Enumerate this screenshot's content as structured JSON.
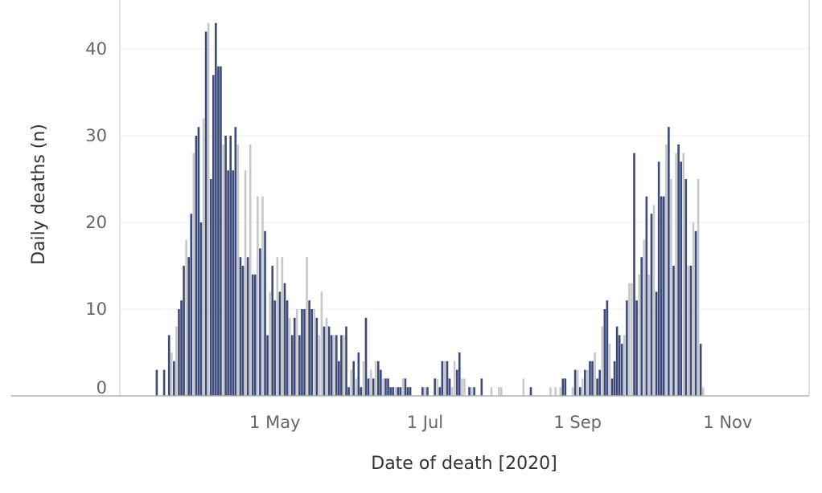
{
  "chart_data": {
    "type": "bar",
    "xlabel": "Date of death [2020]",
    "ylabel": "Daily deaths (n)",
    "y_ticks": [
      0,
      10,
      20,
      30,
      40
    ],
    "x_ticks": [
      "1 May",
      "1 Jul",
      "1 Sep",
      "1 Nov"
    ],
    "x_tick_dates": [
      "2020-05-01",
      "2020-07-01",
      "2020-09-01",
      "2020-11-01"
    ],
    "x_range": [
      "2020-02-28",
      "2020-12-09"
    ],
    "ylim": [
      0,
      46
    ],
    "grid": "horizontal",
    "legend": "none",
    "bars": [
      {
        "date": "2020-03-14",
        "value": 3,
        "color": "#3b4a7a"
      },
      {
        "date": "2020-03-17",
        "value": 3,
        "color": "#3b4a7a"
      },
      {
        "date": "2020-03-19",
        "value": 7,
        "color": "#3b4a7a"
      },
      {
        "date": "2020-03-20",
        "value": 5,
        "color": "#c8c8c8"
      },
      {
        "date": "2020-03-21",
        "value": 4,
        "color": "#3b4a7a"
      },
      {
        "date": "2020-03-22",
        "value": 8,
        "color": "#c8c8c8"
      },
      {
        "date": "2020-03-23",
        "value": 10,
        "color": "#3b4a7a"
      },
      {
        "date": "2020-03-24",
        "value": 11,
        "color": "#3b4a7a"
      },
      {
        "date": "2020-03-25",
        "value": 15,
        "color": "#3b4a7a"
      },
      {
        "date": "2020-03-26",
        "value": 18,
        "color": "#c8c8c8"
      },
      {
        "date": "2020-03-27",
        "value": 16,
        "color": "#3b4a7a"
      },
      {
        "date": "2020-03-28",
        "value": 21,
        "color": "#3b4a7a"
      },
      {
        "date": "2020-03-29",
        "value": 28,
        "color": "#c8c8c8"
      },
      {
        "date": "2020-03-30",
        "value": 30,
        "color": "#3b4a7a"
      },
      {
        "date": "2020-03-31",
        "value": 31,
        "color": "#3b4a7a"
      },
      {
        "date": "2020-04-01",
        "value": 20,
        "color": "#3b4a7a"
      },
      {
        "date": "2020-04-02",
        "value": 32,
        "color": "#c8c8c8"
      },
      {
        "date": "2020-04-03",
        "value": 42,
        "color": "#3b4a7a"
      },
      {
        "date": "2020-04-04",
        "value": 43,
        "color": "#c8c8c8"
      },
      {
        "date": "2020-04-05",
        "value": 25,
        "color": "#3b4a7a"
      },
      {
        "date": "2020-04-06",
        "value": 37,
        "color": "#3b4a7a"
      },
      {
        "date": "2020-04-07",
        "value": 43,
        "color": "#3b4a7a"
      },
      {
        "date": "2020-04-08",
        "value": 38,
        "color": "#3b4a7a"
      },
      {
        "date": "2020-04-09",
        "value": 38,
        "color": "#3b4a7a"
      },
      {
        "date": "2020-04-10",
        "value": 29,
        "color": "#c8c8c8"
      },
      {
        "date": "2020-04-11",
        "value": 30,
        "color": "#3b4a7a"
      },
      {
        "date": "2020-04-12",
        "value": 26,
        "color": "#3b4a7a"
      },
      {
        "date": "2020-04-13",
        "value": 30,
        "color": "#3b4a7a"
      },
      {
        "date": "2020-04-14",
        "value": 26,
        "color": "#3b4a7a"
      },
      {
        "date": "2020-04-15",
        "value": 31,
        "color": "#3b4a7a"
      },
      {
        "date": "2020-04-16",
        "value": 29,
        "color": "#c8c8c8"
      },
      {
        "date": "2020-04-17",
        "value": 16,
        "color": "#3b4a7a"
      },
      {
        "date": "2020-04-18",
        "value": 15,
        "color": "#3b4a7a"
      },
      {
        "date": "2020-04-19",
        "value": 26,
        "color": "#c8c8c8"
      },
      {
        "date": "2020-04-20",
        "value": 16,
        "color": "#3b4a7a"
      },
      {
        "date": "2020-04-21",
        "value": 29,
        "color": "#c8c8c8"
      },
      {
        "date": "2020-04-22",
        "value": 14,
        "color": "#3b4a7a"
      },
      {
        "date": "2020-04-23",
        "value": 14,
        "color": "#3b4a7a"
      },
      {
        "date": "2020-04-24",
        "value": 23,
        "color": "#c8c8c8"
      },
      {
        "date": "2020-04-25",
        "value": 17,
        "color": "#3b4a7a"
      },
      {
        "date": "2020-04-26",
        "value": 23,
        "color": "#c8c8c8"
      },
      {
        "date": "2020-04-27",
        "value": 19,
        "color": "#3b4a7a"
      },
      {
        "date": "2020-04-28",
        "value": 7,
        "color": "#3b4a7a"
      },
      {
        "date": "2020-04-29",
        "value": 12,
        "color": "#c8c8c8"
      },
      {
        "date": "2020-04-30",
        "value": 15,
        "color": "#3b4a7a"
      },
      {
        "date": "2020-05-01",
        "value": 11,
        "color": "#3b4a7a"
      },
      {
        "date": "2020-05-02",
        "value": 16,
        "color": "#c8c8c8"
      },
      {
        "date": "2020-05-03",
        "value": 12,
        "color": "#3b4a7a"
      },
      {
        "date": "2020-05-04",
        "value": 16,
        "color": "#c8c8c8"
      },
      {
        "date": "2020-05-05",
        "value": 13,
        "color": "#3b4a7a"
      },
      {
        "date": "2020-05-06",
        "value": 11,
        "color": "#3b4a7a"
      },
      {
        "date": "2020-05-07",
        "value": 9,
        "color": "#c8c8c8"
      },
      {
        "date": "2020-05-08",
        "value": 7,
        "color": "#3b4a7a"
      },
      {
        "date": "2020-05-09",
        "value": 9,
        "color": "#3b4a7a"
      },
      {
        "date": "2020-05-10",
        "value": 10,
        "color": "#c8c8c8"
      },
      {
        "date": "2020-05-11",
        "value": 7,
        "color": "#3b4a7a"
      },
      {
        "date": "2020-05-12",
        "value": 10,
        "color": "#3b4a7a"
      },
      {
        "date": "2020-05-13",
        "value": 10,
        "color": "#3b4a7a"
      },
      {
        "date": "2020-05-14",
        "value": 16,
        "color": "#c8c8c8"
      },
      {
        "date": "2020-05-15",
        "value": 11,
        "color": "#3b4a7a"
      },
      {
        "date": "2020-05-16",
        "value": 10,
        "color": "#3b4a7a"
      },
      {
        "date": "2020-05-17",
        "value": 10,
        "color": "#c8c8c8"
      },
      {
        "date": "2020-05-18",
        "value": 9,
        "color": "#3b4a7a"
      },
      {
        "date": "2020-05-19",
        "value": 7,
        "color": "#c8c8c8"
      },
      {
        "date": "2020-05-20",
        "value": 12,
        "color": "#c8c8c8"
      },
      {
        "date": "2020-05-21",
        "value": 8,
        "color": "#3b4a7a"
      },
      {
        "date": "2020-05-22",
        "value": 9,
        "color": "#c8c8c8"
      },
      {
        "date": "2020-05-23",
        "value": 8,
        "color": "#3b4a7a"
      },
      {
        "date": "2020-05-24",
        "value": 7,
        "color": "#3b4a7a"
      },
      {
        "date": "2020-05-25",
        "value": 7,
        "color": "#c8c8c8"
      },
      {
        "date": "2020-05-26",
        "value": 7,
        "color": "#3b4a7a"
      },
      {
        "date": "2020-05-27",
        "value": 4,
        "color": "#3b4a7a"
      },
      {
        "date": "2020-05-28",
        "value": 7,
        "color": "#3b4a7a"
      },
      {
        "date": "2020-05-29",
        "value": 7,
        "color": "#c8c8c8"
      },
      {
        "date": "2020-05-30",
        "value": 8,
        "color": "#3b4a7a"
      },
      {
        "date": "2020-05-31",
        "value": 1,
        "color": "#3b4a7a"
      },
      {
        "date": "2020-06-01",
        "value": 3,
        "color": "#c8c8c8"
      },
      {
        "date": "2020-06-02",
        "value": 4,
        "color": "#3b4a7a"
      },
      {
        "date": "2020-06-03",
        "value": 2,
        "color": "#c8c8c8"
      },
      {
        "date": "2020-06-04",
        "value": 5,
        "color": "#3b4a7a"
      },
      {
        "date": "2020-06-05",
        "value": 1,
        "color": "#3b4a7a"
      },
      {
        "date": "2020-06-06",
        "value": 4,
        "color": "#c8c8c8"
      },
      {
        "date": "2020-06-07",
        "value": 9,
        "color": "#3b4a7a"
      },
      {
        "date": "2020-06-08",
        "value": 2,
        "color": "#3b4a7a"
      },
      {
        "date": "2020-06-09",
        "value": 3,
        "color": "#c8c8c8"
      },
      {
        "date": "2020-06-10",
        "value": 2,
        "color": "#3b4a7a"
      },
      {
        "date": "2020-06-11",
        "value": 4,
        "color": "#c8c8c8"
      },
      {
        "date": "2020-06-12",
        "value": 4,
        "color": "#3b4a7a"
      },
      {
        "date": "2020-06-13",
        "value": 3,
        "color": "#3b4a7a"
      },
      {
        "date": "2020-06-14",
        "value": 2,
        "color": "#c8c8c8"
      },
      {
        "date": "2020-06-15",
        "value": 2,
        "color": "#3b4a7a"
      },
      {
        "date": "2020-06-16",
        "value": 2,
        "color": "#3b4a7a"
      },
      {
        "date": "2020-06-17",
        "value": 1,
        "color": "#3b4a7a"
      },
      {
        "date": "2020-06-18",
        "value": 1,
        "color": "#3b4a7a"
      },
      {
        "date": "2020-06-19",
        "value": 1,
        "color": "#c8c8c8"
      },
      {
        "date": "2020-06-20",
        "value": 1,
        "color": "#3b4a7a"
      },
      {
        "date": "2020-06-21",
        "value": 1,
        "color": "#3b4a7a"
      },
      {
        "date": "2020-06-22",
        "value": 2,
        "color": "#c8c8c8"
      },
      {
        "date": "2020-06-23",
        "value": 2,
        "color": "#3b4a7a"
      },
      {
        "date": "2020-06-24",
        "value": 1,
        "color": "#3b4a7a"
      },
      {
        "date": "2020-06-25",
        "value": 1,
        "color": "#3b4a7a"
      },
      {
        "date": "2020-06-30",
        "value": 1,
        "color": "#3b4a7a"
      },
      {
        "date": "2020-07-01",
        "value": 1,
        "color": "#c8c8c8"
      },
      {
        "date": "2020-07-02",
        "value": 1,
        "color": "#3b4a7a"
      },
      {
        "date": "2020-07-05",
        "value": 2,
        "color": "#3b4a7a"
      },
      {
        "date": "2020-07-06",
        "value": 2,
        "color": "#c8c8c8"
      },
      {
        "date": "2020-07-07",
        "value": 1,
        "color": "#3b4a7a"
      },
      {
        "date": "2020-07-08",
        "value": 4,
        "color": "#3b4a7a"
      },
      {
        "date": "2020-07-09",
        "value": 4,
        "color": "#c8c8c8"
      },
      {
        "date": "2020-07-10",
        "value": 4,
        "color": "#3b4a7a"
      },
      {
        "date": "2020-07-11",
        "value": 2,
        "color": "#3b4a7a"
      },
      {
        "date": "2020-07-12",
        "value": 1,
        "color": "#c8c8c8"
      },
      {
        "date": "2020-07-13",
        "value": 4,
        "color": "#c8c8c8"
      },
      {
        "date": "2020-07-14",
        "value": 3,
        "color": "#3b4a7a"
      },
      {
        "date": "2020-07-15",
        "value": 5,
        "color": "#3b4a7a"
      },
      {
        "date": "2020-07-16",
        "value": 2,
        "color": "#c8c8c8"
      },
      {
        "date": "2020-07-17",
        "value": 2,
        "color": "#c8c8c8"
      },
      {
        "date": "2020-07-19",
        "value": 1,
        "color": "#3b4a7a"
      },
      {
        "date": "2020-07-20",
        "value": 1,
        "color": "#c8c8c8"
      },
      {
        "date": "2020-07-21",
        "value": 1,
        "color": "#3b4a7a"
      },
      {
        "date": "2020-07-24",
        "value": 2,
        "color": "#3b4a7a"
      },
      {
        "date": "2020-07-28",
        "value": 1,
        "color": "#c8c8c8"
      },
      {
        "date": "2020-07-31",
        "value": 1,
        "color": "#c8c8c8"
      },
      {
        "date": "2020-08-01",
        "value": 1,
        "color": "#c8c8c8"
      },
      {
        "date": "2020-08-10",
        "value": 2,
        "color": "#c8c8c8"
      },
      {
        "date": "2020-08-13",
        "value": 1,
        "color": "#3b4a7a"
      },
      {
        "date": "2020-08-21",
        "value": 1,
        "color": "#c8c8c8"
      },
      {
        "date": "2020-08-23",
        "value": 1,
        "color": "#c8c8c8"
      },
      {
        "date": "2020-08-25",
        "value": 1,
        "color": "#c8c8c8"
      },
      {
        "date": "2020-08-26",
        "value": 2,
        "color": "#3b4a7a"
      },
      {
        "date": "2020-08-27",
        "value": 2,
        "color": "#3b4a7a"
      },
      {
        "date": "2020-08-30",
        "value": 1,
        "color": "#c8c8c8"
      },
      {
        "date": "2020-08-31",
        "value": 3,
        "color": "#3b4a7a"
      },
      {
        "date": "2020-09-01",
        "value": 3,
        "color": "#c8c8c8"
      },
      {
        "date": "2020-09-02",
        "value": 1,
        "color": "#3b4a7a"
      },
      {
        "date": "2020-09-03",
        "value": 2,
        "color": "#c8c8c8"
      },
      {
        "date": "2020-09-04",
        "value": 3,
        "color": "#3b4a7a"
      },
      {
        "date": "2020-09-05",
        "value": 3,
        "color": "#c8c8c8"
      },
      {
        "date": "2020-09-06",
        "value": 4,
        "color": "#3b4a7a"
      },
      {
        "date": "2020-09-07",
        "value": 4,
        "color": "#3b4a7a"
      },
      {
        "date": "2020-09-08",
        "value": 5,
        "color": "#c8c8c8"
      },
      {
        "date": "2020-09-09",
        "value": 2,
        "color": "#3b4a7a"
      },
      {
        "date": "2020-09-10",
        "value": 3,
        "color": "#3b4a7a"
      },
      {
        "date": "2020-09-11",
        "value": 8,
        "color": "#c8c8c8"
      },
      {
        "date": "2020-09-12",
        "value": 10,
        "color": "#3b4a7a"
      },
      {
        "date": "2020-09-13",
        "value": 11,
        "color": "#3b4a7a"
      },
      {
        "date": "2020-09-14",
        "value": 6,
        "color": "#c8c8c8"
      },
      {
        "date": "2020-09-15",
        "value": 2,
        "color": "#3b4a7a"
      },
      {
        "date": "2020-09-16",
        "value": 4,
        "color": "#3b4a7a"
      },
      {
        "date": "2020-09-17",
        "value": 8,
        "color": "#3b4a7a"
      },
      {
        "date": "2020-09-18",
        "value": 7,
        "color": "#3b4a7a"
      },
      {
        "date": "2020-09-19",
        "value": 6,
        "color": "#3b4a7a"
      },
      {
        "date": "2020-09-20",
        "value": 7,
        "color": "#c8c8c8"
      },
      {
        "date": "2020-09-21",
        "value": 11,
        "color": "#3b4a7a"
      },
      {
        "date": "2020-09-22",
        "value": 13,
        "color": "#c8c8c8"
      },
      {
        "date": "2020-09-23",
        "value": 13,
        "color": "#c8c8c8"
      },
      {
        "date": "2020-09-24",
        "value": 28,
        "color": "#3b4a7a"
      },
      {
        "date": "2020-09-25",
        "value": 11,
        "color": "#3b4a7a"
      },
      {
        "date": "2020-09-26",
        "value": 14,
        "color": "#c8c8c8"
      },
      {
        "date": "2020-09-27",
        "value": 16,
        "color": "#3b4a7a"
      },
      {
        "date": "2020-09-28",
        "value": 18,
        "color": "#c8c8c8"
      },
      {
        "date": "2020-09-29",
        "value": 23,
        "color": "#3b4a7a"
      },
      {
        "date": "2020-09-30",
        "value": 14,
        "color": "#c8c8c8"
      },
      {
        "date": "2020-10-01",
        "value": 21,
        "color": "#3b4a7a"
      },
      {
        "date": "2020-10-02",
        "value": 22,
        "color": "#c8c8c8"
      },
      {
        "date": "2020-10-03",
        "value": 12,
        "color": "#3b4a7a"
      },
      {
        "date": "2020-10-04",
        "value": 27,
        "color": "#3b4a7a"
      },
      {
        "date": "2020-10-05",
        "value": 23,
        "color": "#3b4a7a"
      },
      {
        "date": "2020-10-06",
        "value": 23,
        "color": "#3b4a7a"
      },
      {
        "date": "2020-10-07",
        "value": 29,
        "color": "#c8c8c8"
      },
      {
        "date": "2020-10-08",
        "value": 31,
        "color": "#3b4a7a"
      },
      {
        "date": "2020-10-09",
        "value": 25,
        "color": "#c8c8c8"
      },
      {
        "date": "2020-10-10",
        "value": 15,
        "color": "#3b4a7a"
      },
      {
        "date": "2020-10-11",
        "value": 28,
        "color": "#c8c8c8"
      },
      {
        "date": "2020-10-12",
        "value": 29,
        "color": "#3b4a7a"
      },
      {
        "date": "2020-10-13",
        "value": 27,
        "color": "#3b4a7a"
      },
      {
        "date": "2020-10-14",
        "value": 28,
        "color": "#c8c8c8"
      },
      {
        "date": "2020-10-15",
        "value": 25,
        "color": "#3b4a7a"
      },
      {
        "date": "2020-10-16",
        "value": 15,
        "color": "#c8c8c8"
      },
      {
        "date": "2020-10-17",
        "value": 15,
        "color": "#3b4a7a"
      },
      {
        "date": "2020-10-18",
        "value": 20,
        "color": "#c8c8c8"
      },
      {
        "date": "2020-10-19",
        "value": 19,
        "color": "#3b4a7a"
      },
      {
        "date": "2020-10-20",
        "value": 25,
        "color": "#c8c8c8"
      },
      {
        "date": "2020-10-21",
        "value": 6,
        "color": "#3b4a7a"
      },
      {
        "date": "2020-10-22",
        "value": 1,
        "color": "#c8c8c8"
      }
    ]
  }
}
